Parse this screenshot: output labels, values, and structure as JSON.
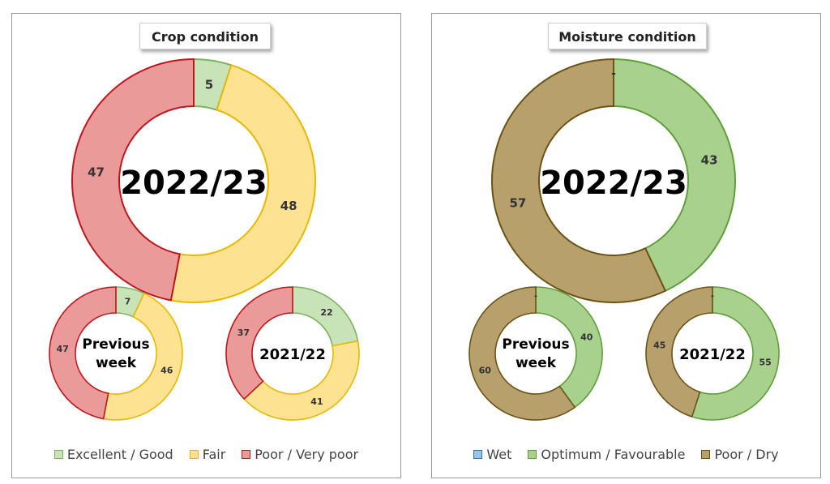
{
  "chart_data": [
    {
      "type": "donut",
      "title": "Crop condition",
      "legend": [
        {
          "name": "Excellent / Good",
          "fill": "#c9e3b8",
          "stroke": "#7ab35f"
        },
        {
          "name": "Fair",
          "fill": "#fde391",
          "stroke": "#e8b800"
        },
        {
          "name": "Poor / Very poor",
          "fill": "#eb9a9a",
          "stroke": "#c0151d"
        }
      ],
      "legend_position": "bottom",
      "donuts": [
        {
          "label": "2022/23",
          "values": [
            5,
            48,
            47
          ],
          "value_labels": [
            "5",
            "48",
            "47"
          ]
        },
        {
          "label": "Previous week",
          "label_lines": [
            "Previous",
            "week"
          ],
          "values": [
            7,
            46,
            47
          ],
          "value_labels": [
            "7",
            "46",
            "47"
          ]
        },
        {
          "label": "2021/22",
          "values": [
            22,
            41,
            37
          ],
          "value_labels": [
            "22",
            "41",
            "37"
          ]
        }
      ]
    },
    {
      "type": "donut",
      "title": "Moisture condition",
      "legend": [
        {
          "name": "Wet",
          "fill": "#9dc3e6",
          "stroke": "#2e75b6"
        },
        {
          "name": "Optimum / Favourable",
          "fill": "#a9d18e",
          "stroke": "#5f9e3a"
        },
        {
          "name": "Poor / Dry",
          "fill": "#b8a06c",
          "stroke": "#6b5316"
        }
      ],
      "legend_position": "bottom",
      "donuts": [
        {
          "label": "2022/23",
          "values": [
            0,
            43,
            57
          ],
          "value_labels": [
            "-",
            "43",
            "57"
          ]
        },
        {
          "label": "Previous week",
          "label_lines": [
            "Previous",
            "week"
          ],
          "values": [
            0,
            40,
            60
          ],
          "value_labels": [
            "-",
            "40",
            "60"
          ]
        },
        {
          "label": "2021/22",
          "values": [
            0,
            55,
            45
          ],
          "value_labels": [
            "-",
            "55",
            "45"
          ]
        }
      ]
    }
  ]
}
